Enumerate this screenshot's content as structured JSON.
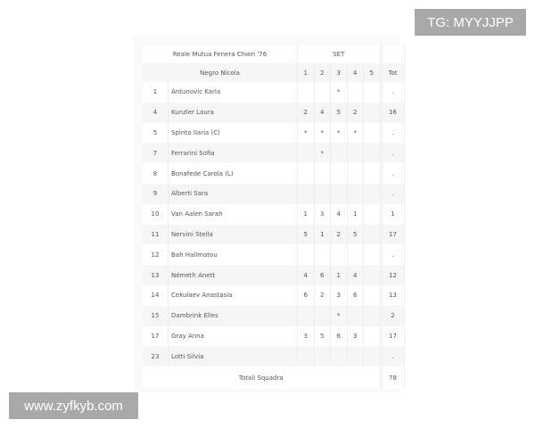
{
  "team": "Reale Mutua Fenera Chieri '76",
  "coach": "Negro Nicola",
  "set_header": "SET",
  "set_columns": [
    "1",
    "2",
    "3",
    "4",
    "5"
  ],
  "tot_header": "Tot",
  "players": [
    {
      "num": "1",
      "name": "Antunovic Karla",
      "sets": [
        "",
        "",
        "*",
        "",
        ""
      ],
      "tot": "."
    },
    {
      "num": "4",
      "name": "Kunzler Laura",
      "sets": [
        "2",
        "4",
        "5",
        "2",
        ""
      ],
      "tot": "16"
    },
    {
      "num": "5",
      "name": "Spirito Ilaria (C)",
      "sets": [
        "*",
        "*",
        "*",
        "*",
        ""
      ],
      "tot": "."
    },
    {
      "num": "7",
      "name": "Ferrarini Sofia",
      "sets": [
        "",
        "*",
        "",
        "",
        ""
      ],
      "tot": "."
    },
    {
      "num": "8",
      "name": "Bonafede Carola (L)",
      "sets": [
        "",
        "",
        "",
        "",
        ""
      ],
      "tot": "."
    },
    {
      "num": "9",
      "name": "Alberti Sara",
      "sets": [
        "",
        "",
        "",
        "",
        ""
      ],
      "tot": "."
    },
    {
      "num": "10",
      "name": "Van Aalen Sarah",
      "sets": [
        "1",
        "3",
        "4",
        "1",
        ""
      ],
      "tot": "1"
    },
    {
      "num": "11",
      "name": "Nervini Stella",
      "sets": [
        "5",
        "1",
        "2",
        "5",
        ""
      ],
      "tot": "17"
    },
    {
      "num": "12",
      "name": "Bah Halimatou",
      "sets": [
        "",
        "",
        "",
        "",
        ""
      ],
      "tot": "."
    },
    {
      "num": "13",
      "name": "Németh Anett",
      "sets": [
        "4",
        "6",
        "1",
        "4",
        ""
      ],
      "tot": "12"
    },
    {
      "num": "14",
      "name": "Cekulaev Anastasia",
      "sets": [
        "6",
        "2",
        "3",
        "6",
        ""
      ],
      "tot": "13"
    },
    {
      "num": "15",
      "name": "Dambrink Elles",
      "sets": [
        "",
        "",
        "*",
        "",
        ""
      ],
      "tot": "2"
    },
    {
      "num": "17",
      "name": "Gray Anna",
      "sets": [
        "3",
        "5",
        "6",
        "3",
        ""
      ],
      "tot": "17"
    },
    {
      "num": "23",
      "name": "Lotti Silvia",
      "sets": [
        "",
        "",
        "",
        "",
        ""
      ],
      "tot": "."
    }
  ],
  "total_label": "Totali Squadra",
  "total_value": "78",
  "watermark_top": "TG: MYYJJPP",
  "watermark_bottom": "www.zyfkyb.com"
}
